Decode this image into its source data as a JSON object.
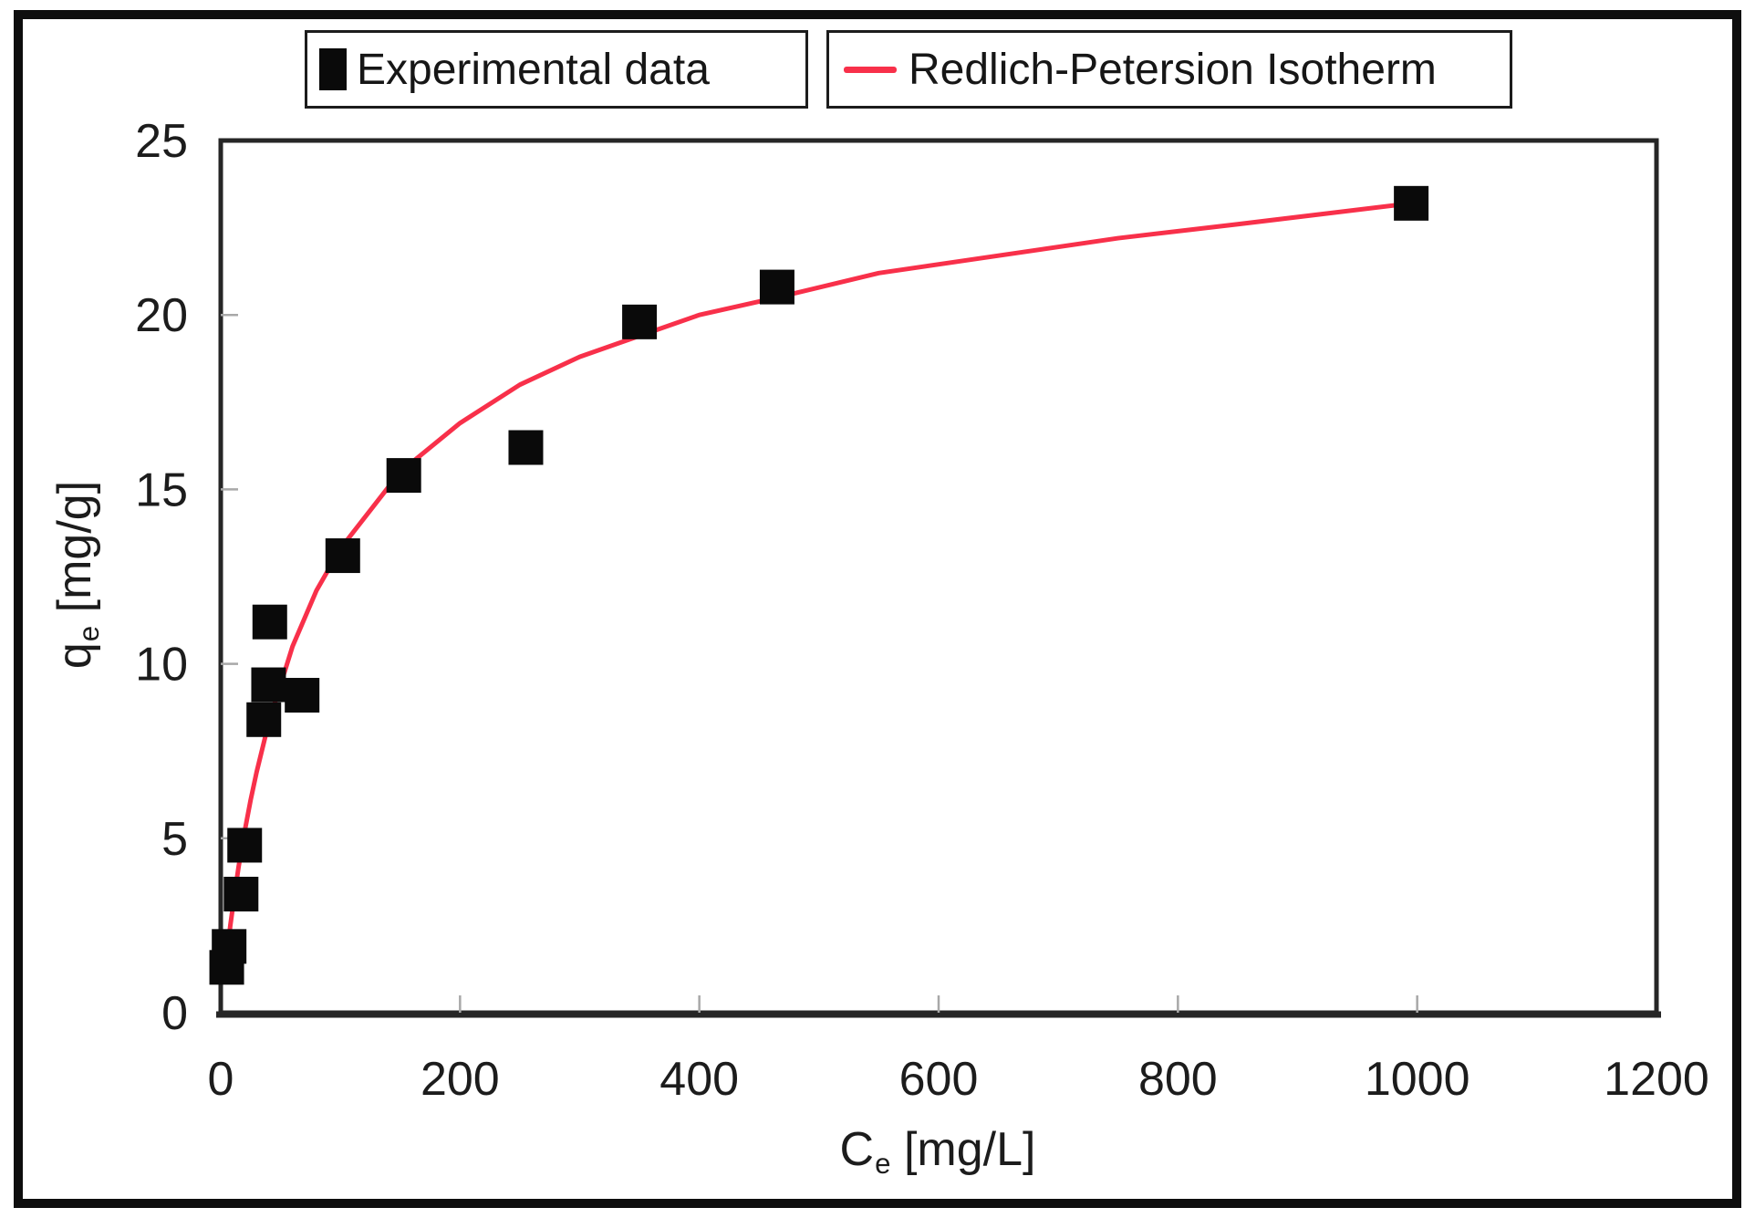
{
  "chart_data": {
    "type": "scatter",
    "title": "",
    "xlabel": "Ce [mg/L]",
    "ylabel": "qe [mg/g]",
    "xlabel_parts": {
      "base": "C",
      "sub": "e",
      "unit": "[mg/L]"
    },
    "ylabel_parts": {
      "base": "q",
      "sub": "e",
      "unit": "[mg/g]"
    },
    "xlim": [
      0,
      1200
    ],
    "ylim": [
      0,
      25
    ],
    "xticks": [
      0,
      200,
      400,
      600,
      800,
      1000,
      1200
    ],
    "yticks": [
      0,
      5,
      10,
      15,
      20,
      25
    ],
    "grid": false,
    "legend_position": "top",
    "colors": {
      "marker": "#0a0a0a",
      "line": "#f8304a",
      "axis": "#262626",
      "tick": "#a8a8a8",
      "text": "#1c1c1c"
    },
    "series": [
      {
        "name": "Experimental data",
        "kind": "scatter",
        "marker": "square",
        "color": "#0a0a0a",
        "points": [
          [
            5,
            1.3
          ],
          [
            7,
            1.9
          ],
          [
            17,
            3.4
          ],
          [
            20,
            4.8
          ],
          [
            36,
            8.4
          ],
          [
            40,
            9.4
          ],
          [
            41,
            11.2
          ],
          [
            68,
            9.1
          ],
          [
            102,
            13.1
          ],
          [
            153,
            15.4
          ],
          [
            255,
            16.2
          ],
          [
            350,
            19.8
          ],
          [
            465,
            20.8
          ],
          [
            995,
            23.2
          ]
        ]
      },
      {
        "name": "Redlich-Petersion Isotherm",
        "kind": "line",
        "color": "#f8304a",
        "points": [
          [
            4,
            1.3
          ],
          [
            5,
            1.6
          ],
          [
            6,
            1.9
          ],
          [
            8,
            2.5
          ],
          [
            10,
            3.0
          ],
          [
            12,
            3.5
          ],
          [
            15,
            4.2
          ],
          [
            20,
            5.2
          ],
          [
            25,
            6.1
          ],
          [
            30,
            6.9
          ],
          [
            40,
            8.3
          ],
          [
            60,
            10.5
          ],
          [
            80,
            12.1
          ],
          [
            100,
            13.3
          ],
          [
            150,
            15.5
          ],
          [
            200,
            16.9
          ],
          [
            250,
            18.0
          ],
          [
            300,
            18.8
          ],
          [
            350,
            19.4
          ],
          [
            400,
            20.0
          ],
          [
            465,
            20.5
          ],
          [
            550,
            21.2
          ],
          [
            650,
            21.7
          ],
          [
            750,
            22.2
          ],
          [
            850,
            22.6
          ],
          [
            995,
            23.2
          ]
        ]
      }
    ]
  }
}
